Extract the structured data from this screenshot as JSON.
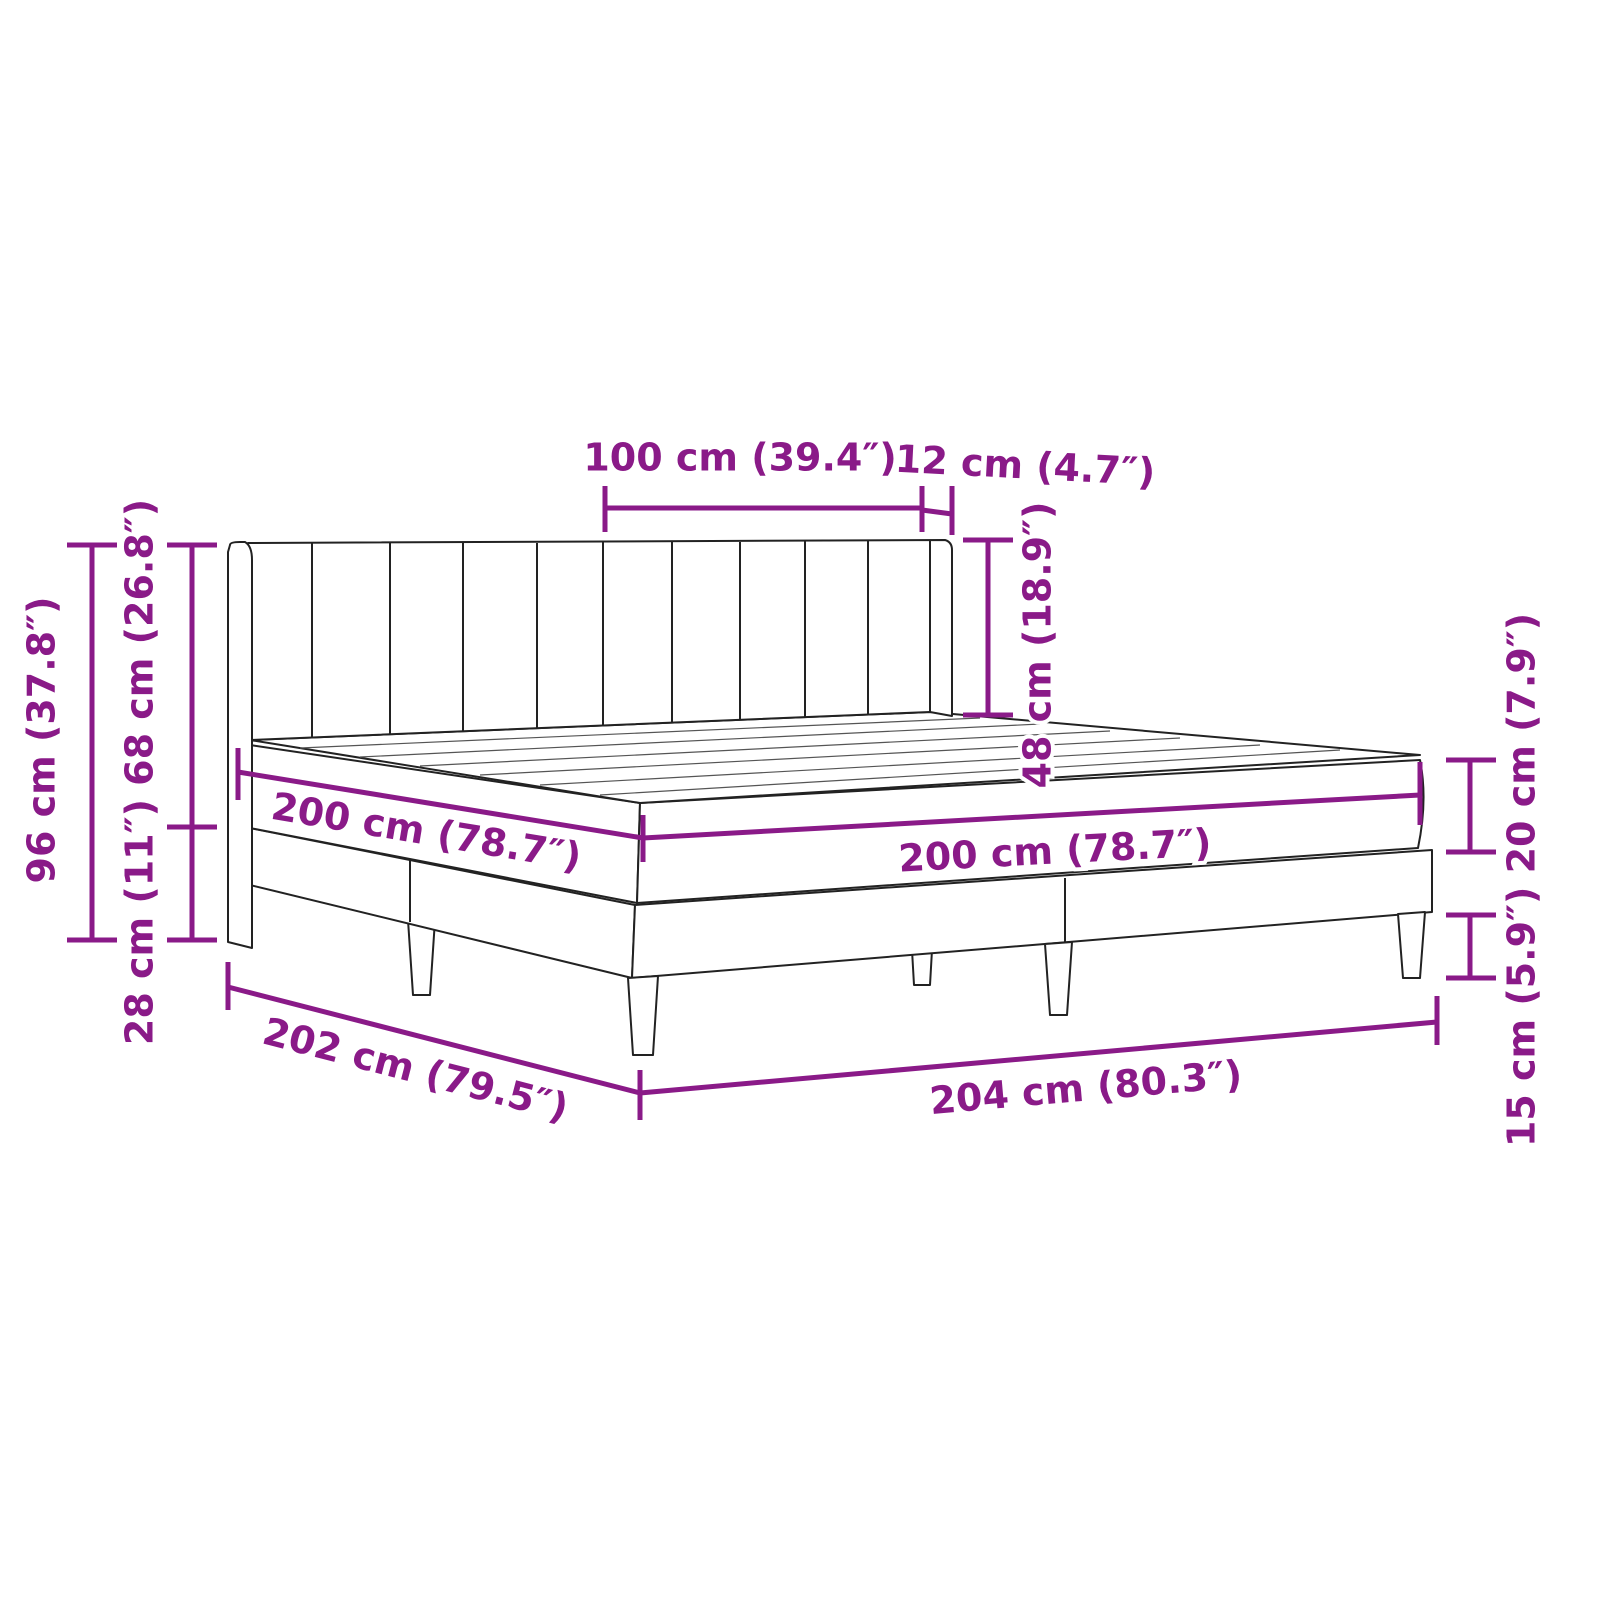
{
  "diagram": {
    "subject": "bed-with-headboard",
    "accent_color": "#8a1a88",
    "labels": {
      "headboard_panel_width": "100 cm (39.4″)",
      "headboard_depth": "12 cm (4.7″)",
      "headboard_visible_height": "48 cm (18.9″)",
      "total_height": "96 cm (37.8″)",
      "headboard_split": "28 cm (11″) 68 cm (26.8″)",
      "mattress_length": "200 cm (78.7″)",
      "mattress_width": "200 cm (78.7″)",
      "heights_right": "15 cm (5.9″) 20 cm (7.9″)",
      "frame_length": "202 cm (79.5″)",
      "frame_width": "204 cm (80.3″)"
    }
  }
}
